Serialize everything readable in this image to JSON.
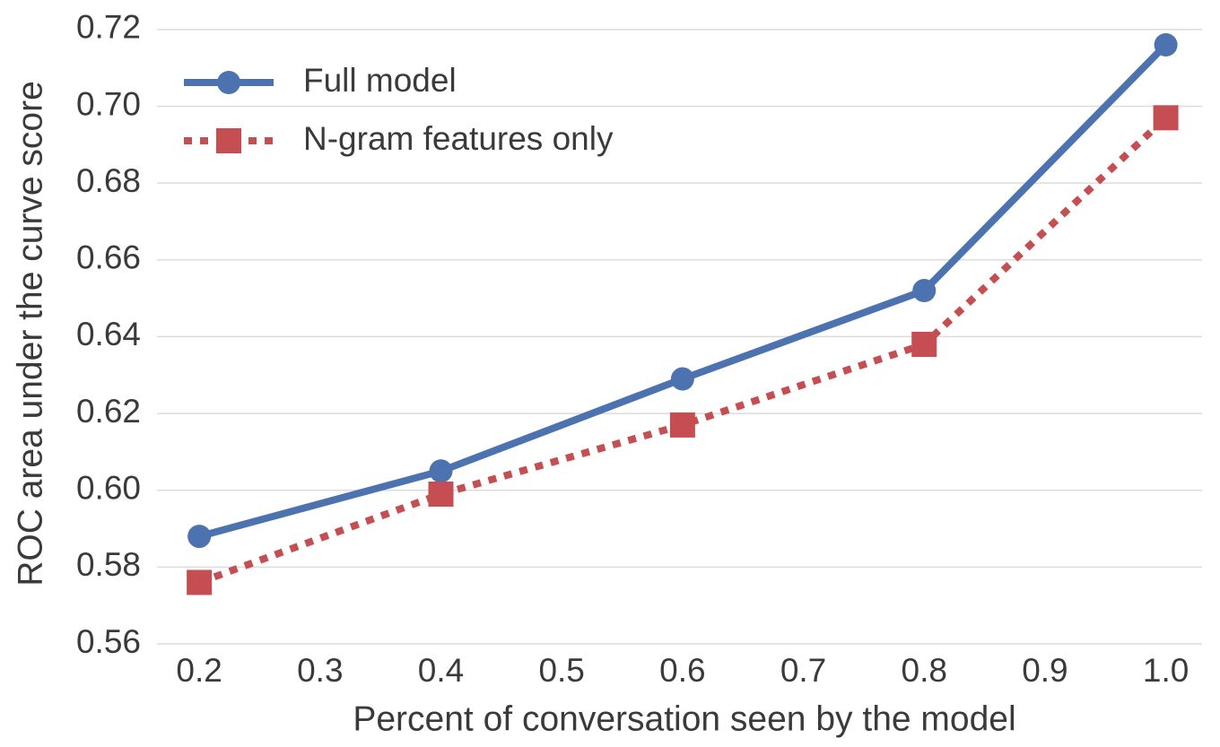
{
  "chart_data": {
    "type": "line",
    "xlabel": "Percent of conversation seen by the model",
    "ylabel": "ROC area under the curve score",
    "x": [
      0.2,
      0.4,
      0.6,
      0.8,
      1.0
    ],
    "series": [
      {
        "name": "Full model",
        "color": "#4c72b0",
        "marker": "circle",
        "linestyle": "solid",
        "values": [
          0.588,
          0.605,
          0.629,
          0.652,
          0.716
        ]
      },
      {
        "name": "N-gram features only",
        "color": "#c44e52",
        "marker": "square",
        "linestyle": "dotted",
        "values": [
          0.576,
          0.599,
          0.617,
          0.638,
          0.697
        ]
      }
    ],
    "xlim": [
      0.165,
      1.03
    ],
    "ylim": [
      0.56,
      0.723
    ],
    "xticks": [
      0.2,
      0.3,
      0.4,
      0.5,
      0.6,
      0.7,
      0.8,
      0.9,
      {
        "value": 1.0,
        "label": "1.0"
      }
    ],
    "yticks": [
      0.56,
      0.58,
      {
        "value": 0.6,
        "label": "0.60"
      },
      0.62,
      0.64,
      0.66,
      0.68,
      {
        "value": 0.7,
        "label": "0.70"
      },
      0.72
    ],
    "grid": "y",
    "legend": "upper left"
  }
}
